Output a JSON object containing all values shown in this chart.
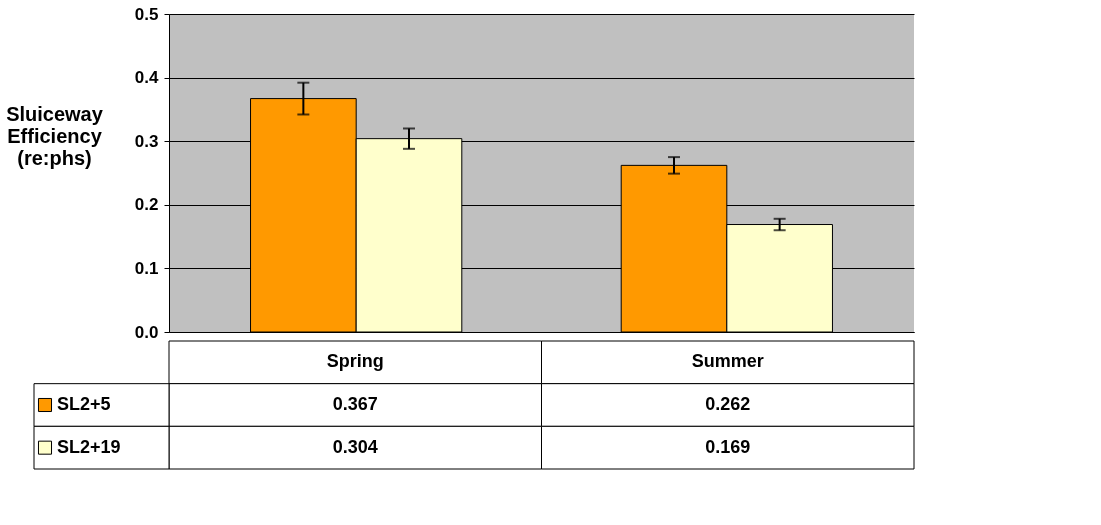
{
  "chart_data": {
    "type": "bar",
    "ylabel": "Sluiceway Efficiency (re:phs)",
    "categories": [
      "Spring",
      "Summer"
    ],
    "series": [
      {
        "name": "SL2+5",
        "color": "#ff9900",
        "values": [
          0.367,
          0.262
        ],
        "errors": [
          0.025,
          0.013
        ]
      },
      {
        "name": "SL2+19",
        "color": "#ffffcc",
        "values": [
          0.304,
          0.169
        ],
        "errors": [
          0.016,
          0.009
        ]
      }
    ],
    "ylim": [
      0,
      0.5
    ],
    "yticks": [
      {
        "value": 0,
        "label": "0.0"
      },
      {
        "value": 0.1,
        "label": "0.1"
      },
      {
        "value": 0.2,
        "label": "0.2"
      },
      {
        "value": 0.3,
        "label": "0.3"
      },
      {
        "value": 0.4,
        "label": "0.4"
      },
      {
        "value": 0.5,
        "label": "0.5"
      }
    ],
    "grid": "y",
    "data_labels": true,
    "legend": "bottom left"
  }
}
